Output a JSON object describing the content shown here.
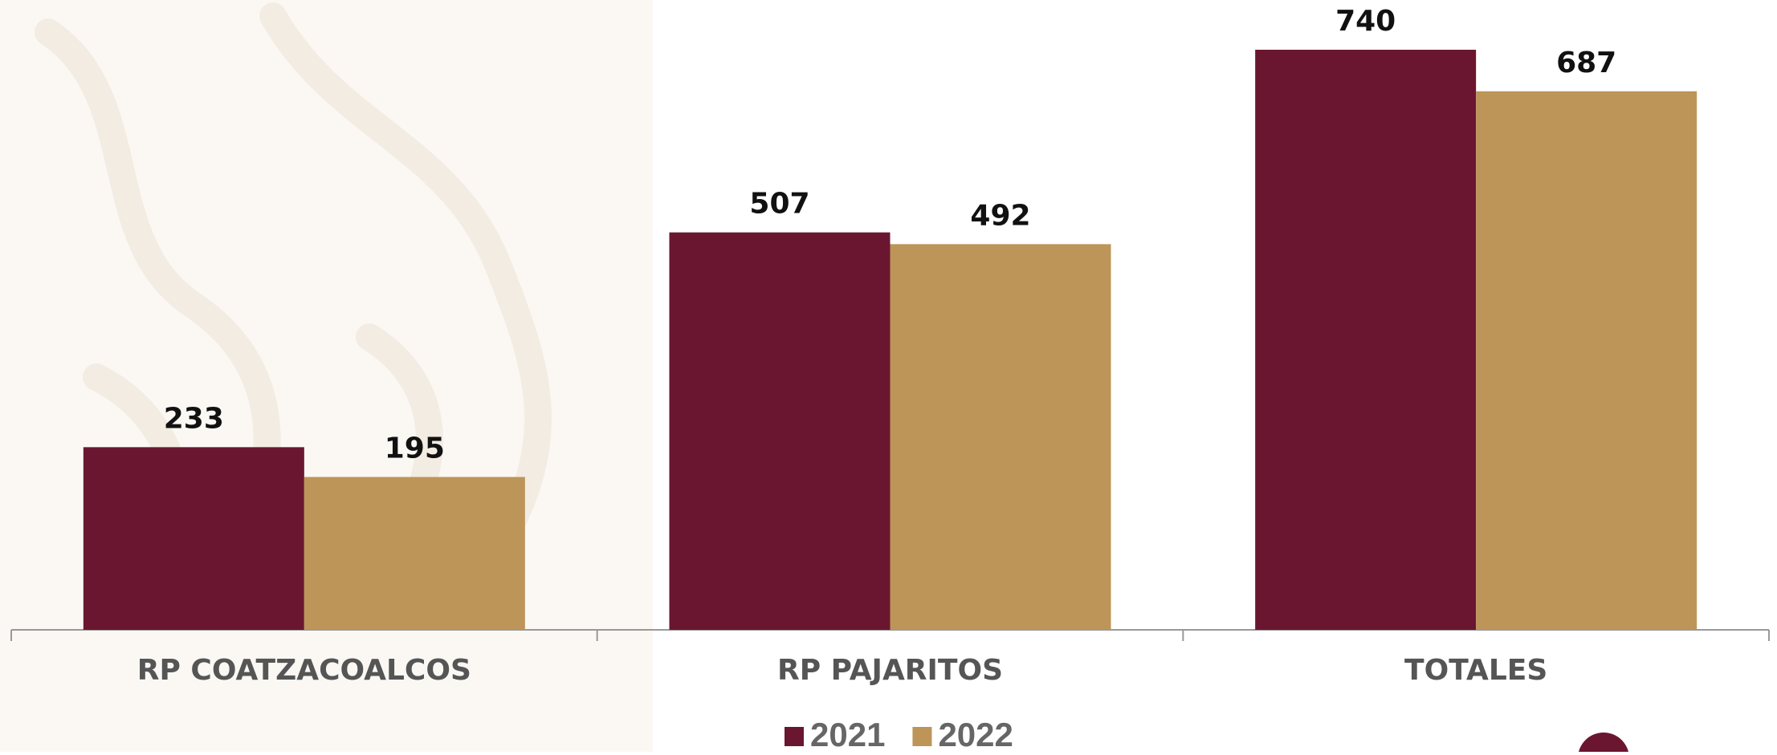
{
  "chart_data": {
    "type": "bar",
    "categories": [
      "RP COATZACOALCOS",
      "RP PAJARITOS",
      "TOTALES"
    ],
    "series": [
      {
        "name": "2021",
        "color": "#6b1630",
        "values": [
          233,
          507,
          740
        ]
      },
      {
        "name": "2022",
        "color": "#bd9559",
        "values": [
          195,
          492,
          687
        ]
      }
    ]
  }
}
